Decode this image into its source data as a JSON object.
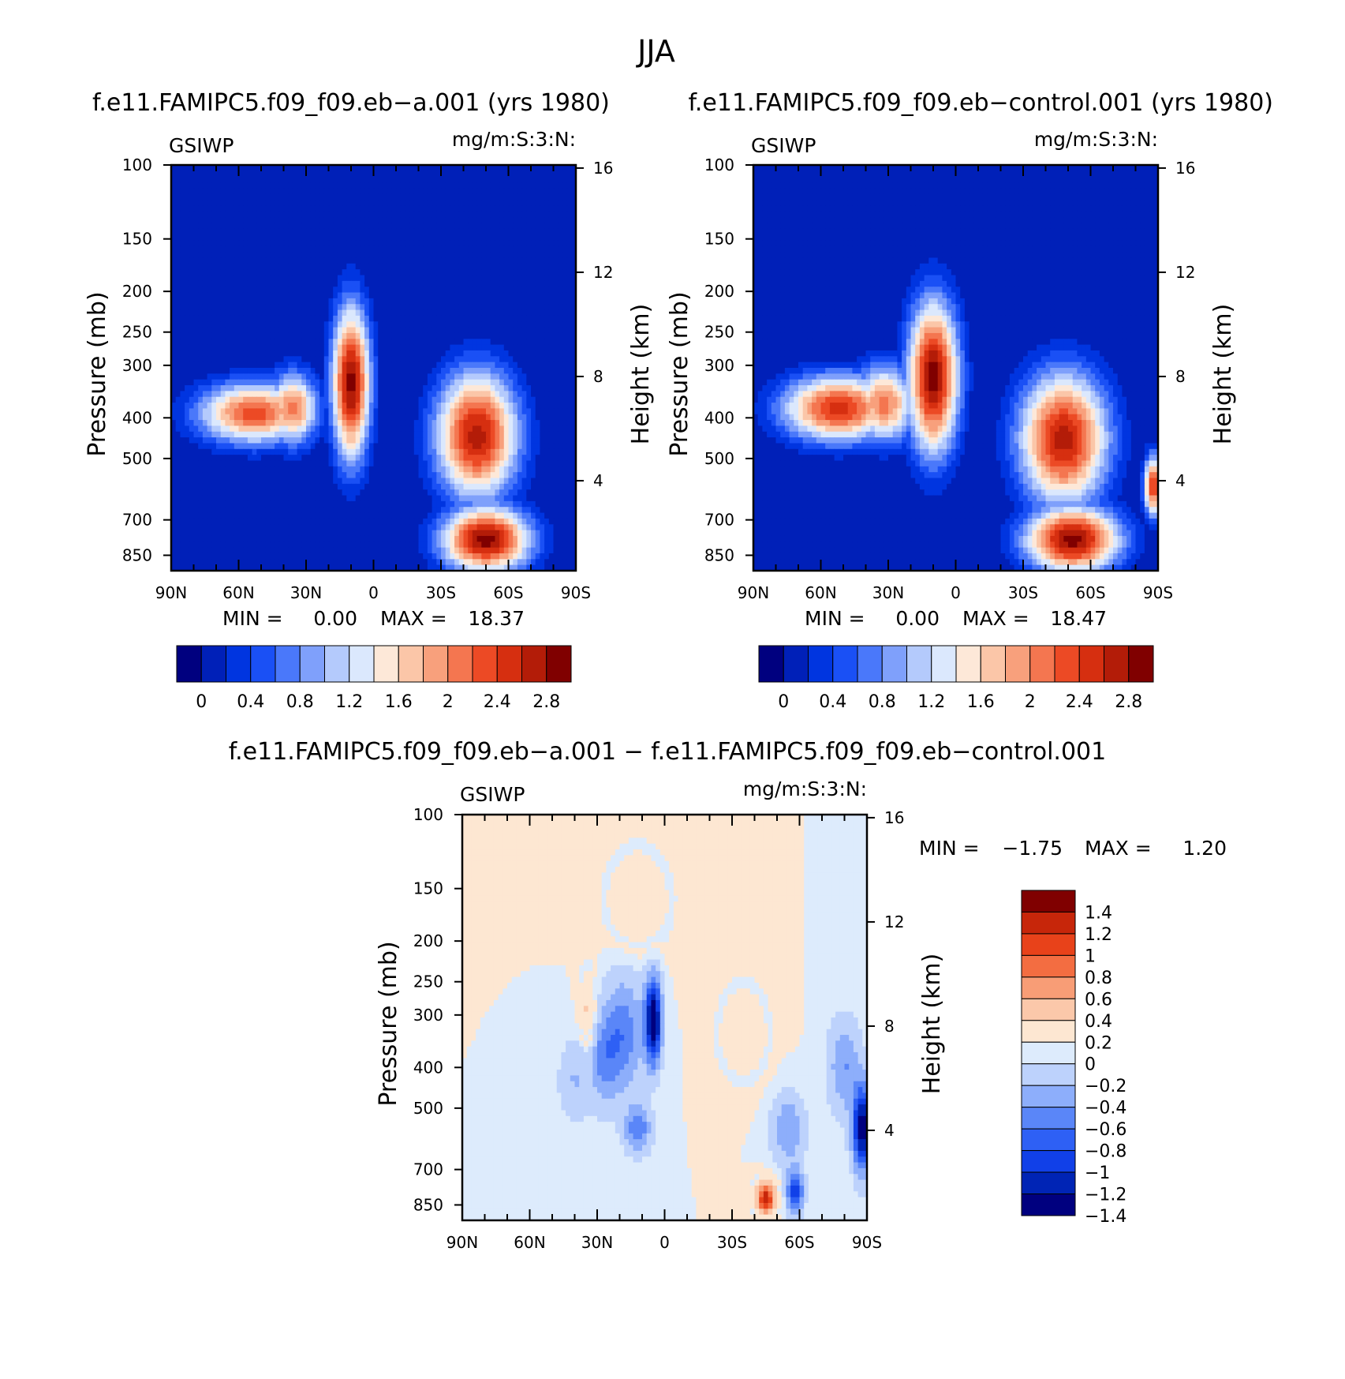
{
  "figure": {
    "title": "JJA",
    "colors": {
      "seq": [
        "#00007f",
        "#0020b8",
        "#0035e0",
        "#1a50f5",
        "#4a78fa",
        "#7fa0fb",
        "#b4cafc",
        "#dbe8fd",
        "#fde8d8",
        "#fbc6a8",
        "#f8a07c",
        "#f47650",
        "#ec4a25",
        "#d62f10",
        "#b31c08",
        "#800000"
      ],
      "diff": [
        "#00007f",
        "#0024b5",
        "#1140e8",
        "#2e60f5",
        "#5a86f8",
        "#8daefb",
        "#bdd2fc",
        "#ddebfc",
        "#fde7d2",
        "#fbc8aa",
        "#f89d76",
        "#f36d41",
        "#e8421a",
        "#c7260a",
        "#800000"
      ]
    }
  },
  "chart_data": [
    {
      "type": "contour",
      "title": "f.e11.FAMIPC5.f09_f09.eb−a.001 (yrs 1980)",
      "left_label": "GSIWP",
      "right_label": "mg/m:S:3:N:",
      "xlabel": "",
      "ylabel": "Pressure (mb)",
      "y2label": "Height (km)",
      "x_ticks": [
        "90N",
        "60N",
        "30N",
        "0",
        "30S",
        "60S",
        "90S"
      ],
      "y_ticks": [
        "100",
        "150",
        "200",
        "250",
        "300",
        "400",
        "500",
        "700",
        "850"
      ],
      "y_tick_values": [
        100,
        150,
        200,
        250,
        300,
        400,
        500,
        700,
        850
      ],
      "y2_ticks": [
        "16",
        "12",
        "8",
        "4"
      ],
      "y2_tick_values": [
        16,
        12,
        8,
        4
      ],
      "min_label": "MIN =",
      "min_value": "0.00",
      "max_label": "MAX =",
      "max_value": "18.37",
      "colorbar_labels": [
        "0",
        "0.4",
        "0.8",
        "1.2",
        "1.6",
        "2",
        "2.4",
        "2.8"
      ],
      "blobs": [
        {
          "lat": 53,
          "p": 390,
          "level": 12,
          "sx": 18,
          "sy": 1.2
        },
        {
          "lat": 36,
          "p": 380,
          "level": 11,
          "sx": 8,
          "sy": 1.4
        },
        {
          "lat": 10,
          "p": 330,
          "level": 15,
          "sx": 6,
          "sy": 3.0
        },
        {
          "lat": -46,
          "p": 440,
          "level": 14,
          "sx": 13,
          "sy": 2.5
        },
        {
          "lat": -50,
          "p": 780,
          "level": 15,
          "sx": 14,
          "sy": 1.3
        }
      ]
    },
    {
      "type": "contour",
      "title": "f.e11.FAMIPC5.f09_f09.eb−control.001 (yrs 1980)",
      "left_label": "GSIWP",
      "right_label": "mg/m:S:3:N:",
      "xlabel": "",
      "ylabel": "Pressure (mb)",
      "y2label": "Height (km)",
      "x_ticks": [
        "90N",
        "60N",
        "30N",
        "0",
        "30S",
        "60S",
        "90S"
      ],
      "y_ticks": [
        "100",
        "150",
        "200",
        "250",
        "300",
        "400",
        "500",
        "700",
        "850"
      ],
      "y_tick_values": [
        100,
        150,
        200,
        250,
        300,
        400,
        500,
        700,
        850
      ],
      "y2_ticks": [
        "16",
        "12",
        "8",
        "4"
      ],
      "y2_tick_values": [
        16,
        12,
        8,
        4
      ],
      "min_label": "MIN =",
      "min_value": "0.00",
      "max_label": "MAX =",
      "max_value": "18.47",
      "colorbar_labels": [
        "0",
        "0.4",
        "0.8",
        "1.2",
        "1.6",
        "2",
        "2.4",
        "2.8"
      ],
      "blobs": [
        {
          "lat": 52,
          "p": 380,
          "level": 13,
          "sx": 18,
          "sy": 1.3
        },
        {
          "lat": 32,
          "p": 370,
          "level": 11,
          "sx": 10,
          "sy": 1.5
        },
        {
          "lat": 10,
          "p": 320,
          "level": 15,
          "sx": 8,
          "sy": 3.0
        },
        {
          "lat": -48,
          "p": 450,
          "level": 14,
          "sx": 14,
          "sy": 2.6
        },
        {
          "lat": -52,
          "p": 780,
          "level": 15,
          "sx": 15,
          "sy": 1.3
        },
        {
          "lat": -88,
          "p": 580,
          "level": 13,
          "sx": 3,
          "sy": 1.2
        }
      ]
    },
    {
      "type": "contour",
      "title": "f.e11.FAMIPC5.f09_f09.eb−a.001 − f.e11.FAMIPC5.f09_f09.eb−control.001",
      "left_label": "GSIWP",
      "right_label": "mg/m:S:3:N:",
      "xlabel": "",
      "ylabel": "Pressure (mb)",
      "y2label": "Height (km)",
      "x_ticks": [
        "90N",
        "60N",
        "30N",
        "0",
        "30S",
        "60S",
        "90S"
      ],
      "y_ticks": [
        "100",
        "150",
        "200",
        "250",
        "300",
        "400",
        "500",
        "700",
        "850"
      ],
      "y_tick_values": [
        100,
        150,
        200,
        250,
        300,
        400,
        500,
        700,
        850
      ],
      "y2_ticks": [
        "16",
        "12",
        "8",
        "4"
      ],
      "y2_tick_values": [
        16,
        12,
        8,
        4
      ],
      "min_label": "MIN =",
      "min_value": "−1.75",
      "max_label": "MAX =",
      "max_value": "1.20",
      "colorbar_labels": [
        "1.4",
        "1.2",
        "1",
        "0.8",
        "0.6",
        "0.4",
        "0.2",
        "0",
        "−0.2",
        "−0.4",
        "−0.6",
        "−0.8",
        "−1",
        "−1.2",
        "−1.4"
      ],
      "blobs": [
        {
          "lat": 5,
          "p": 310,
          "v": -1.6,
          "sx": 2.5,
          "sy": 1.6
        },
        {
          "lat": 18,
          "p": 330,
          "v": -0.6,
          "sx": 6,
          "sy": 2.2
        },
        {
          "lat": 27,
          "p": 380,
          "v": -0.5,
          "sx": 5,
          "sy": 1.8
        },
        {
          "lat": 12,
          "p": 560,
          "v": -0.7,
          "sx": 4,
          "sy": 0.9
        },
        {
          "lat": 34,
          "p": 300,
          "v": 0.4,
          "sx": 2.5,
          "sy": 1.6
        },
        {
          "lat": 12,
          "p": 160,
          "v": 0.3,
          "sx": 9,
          "sy": 1.8
        },
        {
          "lat": -35,
          "p": 330,
          "v": 0.3,
          "sx": 7,
          "sy": 1.6
        },
        {
          "lat": -45,
          "p": 820,
          "v": 1.2,
          "sx": 3,
          "sy": 0.6
        },
        {
          "lat": -58,
          "p": 790,
          "v": -1.1,
          "sx": 2.5,
          "sy": 0.8
        },
        {
          "lat": -88,
          "p": 560,
          "v": -1.5,
          "sx": 3,
          "sy": 1.6
        },
        {
          "lat": -80,
          "p": 400,
          "v": -0.5,
          "sx": 5,
          "sy": 1.8
        },
        {
          "lat": -55,
          "p": 560,
          "v": -0.5,
          "sx": 5,
          "sy": 1.3
        },
        {
          "lat": 40,
          "p": 430,
          "v": -0.3,
          "sx": 5,
          "sy": 1.5
        }
      ]
    }
  ]
}
